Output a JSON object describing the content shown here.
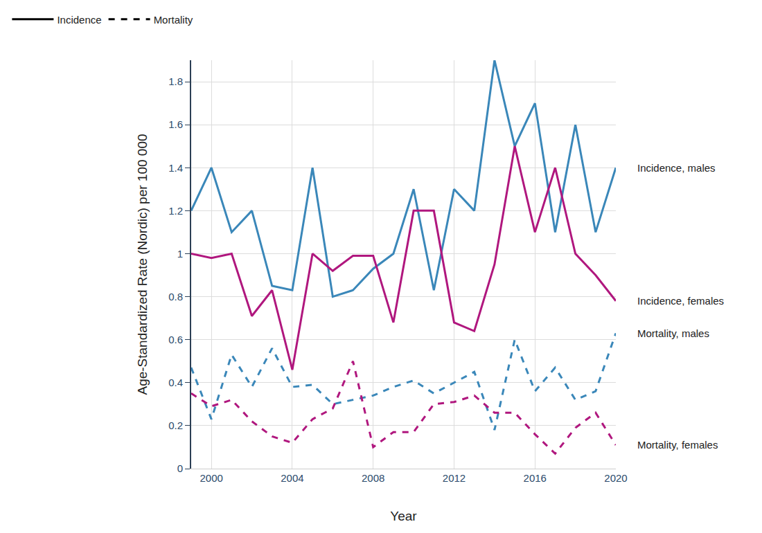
{
  "chart_data": {
    "type": "line",
    "x_label": "Year",
    "y_label": "Age-Standardized Rate (Nordic) per 100 000",
    "x": [
      1999,
      2000,
      2001,
      2002,
      2003,
      2004,
      2005,
      2006,
      2007,
      2008,
      2009,
      2010,
      2011,
      2012,
      2013,
      2014,
      2015,
      2016,
      2017,
      2018,
      2019,
      2020
    ],
    "xlim": [
      1999,
      2020
    ],
    "xticks": [
      2000,
      2004,
      2008,
      2012,
      2016,
      2020
    ],
    "ylim": [
      0,
      1.9
    ],
    "yticks": [
      0,
      0.2,
      0.4,
      0.6,
      0.8,
      1,
      1.2,
      1.4,
      1.6,
      1.8
    ],
    "grid": true,
    "legend": "top left",
    "legend_entries": [
      {
        "name": "Incidence",
        "line_style": "solid",
        "color": "#000000"
      },
      {
        "name": "Mortality",
        "line_style": "dashed",
        "color": "#000000"
      }
    ],
    "series": [
      {
        "name": "Incidence, males",
        "color": "#3a87b9",
        "line_style": "solid",
        "values": [
          1.2,
          1.4,
          1.1,
          1.2,
          0.85,
          0.83,
          1.4,
          0.8,
          0.83,
          0.93,
          1.0,
          1.3,
          0.83,
          1.3,
          1.2,
          1.9,
          1.5,
          1.7,
          1.1,
          1.6,
          1.1,
          1.4
        ]
      },
      {
        "name": "Incidence, females",
        "color": "#b0177e",
        "line_style": "solid",
        "values": [
          1.0,
          0.98,
          1.0,
          0.71,
          0.83,
          0.46,
          1.0,
          0.92,
          0.99,
          0.99,
          0.68,
          1.2,
          1.2,
          0.68,
          0.64,
          0.95,
          1.5,
          1.1,
          1.4,
          1.0,
          0.9,
          0.78
        ]
      },
      {
        "name": "Mortality, males",
        "color": "#3a87b9",
        "line_style": "dashed",
        "values": [
          0.47,
          0.23,
          0.53,
          0.38,
          0.56,
          0.38,
          0.39,
          0.3,
          0.32,
          0.34,
          0.38,
          0.41,
          0.35,
          0.4,
          0.45,
          0.18,
          0.6,
          0.36,
          0.47,
          0.32,
          0.36,
          0.63
        ]
      },
      {
        "name": "Mortality, females",
        "color": "#b0177e",
        "line_style": "dashed",
        "values": [
          0.35,
          0.29,
          0.32,
          0.22,
          0.15,
          0.12,
          0.23,
          0.28,
          0.5,
          0.1,
          0.17,
          0.17,
          0.3,
          0.31,
          0.34,
          0.26,
          0.26,
          0.16,
          0.07,
          0.19,
          0.26,
          0.11
        ]
      }
    ]
  }
}
